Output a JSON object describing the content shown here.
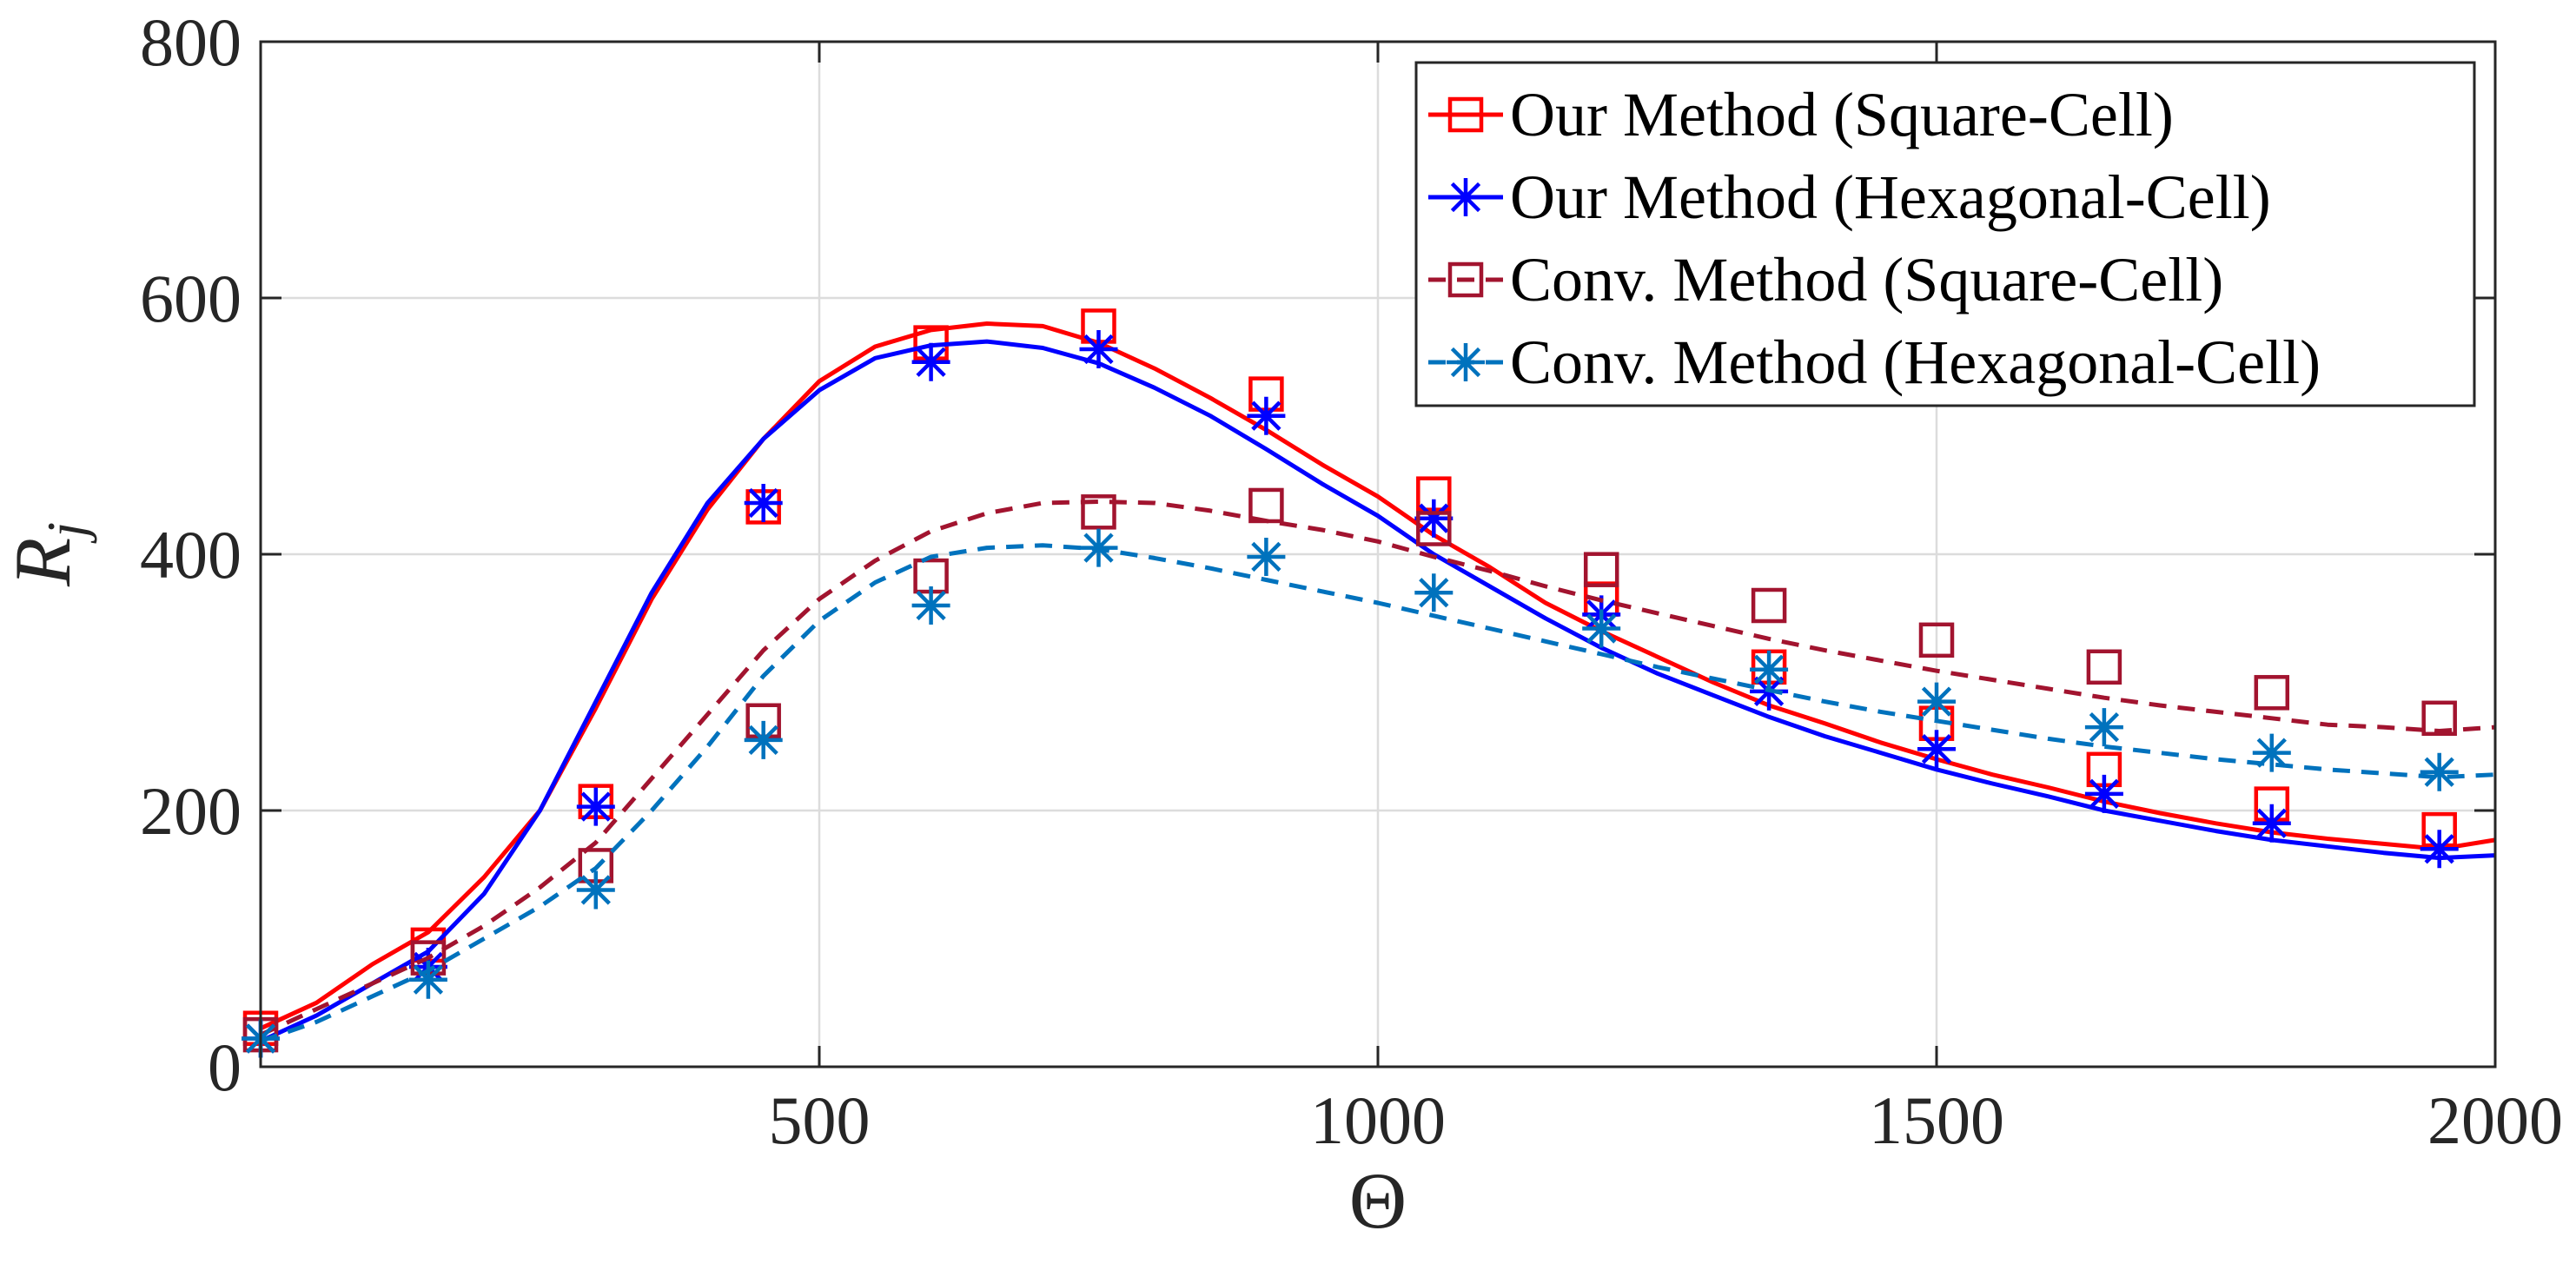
{
  "chart_data": {
    "type": "line",
    "title": "",
    "xlabel": "Θ",
    "ylabel": "R",
    "ylabel_subscript": "j",
    "xlim": [
      0,
      2000
    ],
    "ylim": [
      0,
      800
    ],
    "xticks": [
      500,
      1000,
      1500,
      2000
    ],
    "yticks": [
      0,
      200,
      400,
      600,
      800
    ],
    "grid": true,
    "legend_position": "top-right",
    "series": [
      {
        "name": "Our Method (Square-Cell)",
        "color": "#ff0000",
        "dash": "solid",
        "marker": "square",
        "line": {
          "x": [
            0,
            50,
            100,
            150,
            200,
            250,
            300,
            350,
            400,
            450,
            500,
            550,
            600,
            650,
            700,
            750,
            800,
            850,
            900,
            950,
            1000,
            1050,
            1100,
            1150,
            1200,
            1250,
            1300,
            1350,
            1400,
            1450,
            1500,
            1550,
            1600,
            1650,
            1700,
            1750,
            1800,
            1850,
            1900,
            1950,
            2000
          ],
          "y": [
            30,
            50,
            80,
            105,
            148,
            200,
            280,
            365,
            435,
            490,
            535,
            562,
            575,
            580,
            578,
            565,
            545,
            522,
            497,
            470,
            445,
            415,
            390,
            362,
            340,
            320,
            300,
            282,
            268,
            253,
            240,
            228,
            218,
            207,
            198,
            190,
            183,
            178,
            174,
            170,
            177
          ]
        },
        "markers": {
          "x": [
            0,
            150,
            300,
            450,
            600,
            750,
            900,
            1050,
            1200,
            1350,
            1500,
            1650,
            1800,
            1950
          ],
          "y": [
            30,
            95,
            207,
            437,
            565,
            578,
            525,
            447,
            365,
            312,
            268,
            232,
            205,
            185
          ]
        }
      },
      {
        "name": "Our Method (Hexagonal-Cell)",
        "color": "#0000ff",
        "dash": "solid",
        "marker": "asterisk",
        "line": {
          "x": [
            0,
            50,
            100,
            150,
            200,
            250,
            300,
            350,
            400,
            450,
            500,
            550,
            600,
            650,
            700,
            750,
            800,
            850,
            900,
            950,
            1000,
            1050,
            1100,
            1150,
            1200,
            1250,
            1300,
            1350,
            1400,
            1450,
            1500,
            1550,
            1600,
            1650,
            1700,
            1750,
            1800,
            1850,
            1900,
            1950,
            2000
          ],
          "y": [
            20,
            40,
            65,
            90,
            135,
            200,
            285,
            370,
            440,
            490,
            528,
            553,
            563,
            566,
            561,
            549,
            530,
            508,
            482,
            455,
            430,
            400,
            375,
            350,
            327,
            307,
            290,
            273,
            258,
            245,
            232,
            221,
            211,
            200,
            192,
            184,
            177,
            172,
            167,
            163,
            165
          ]
        },
        "markers": {
          "x": [
            0,
            150,
            300,
            450,
            600,
            750,
            900,
            1050,
            1200,
            1350,
            1500,
            1650,
            1800,
            1950
          ],
          "y": [
            22,
            78,
            203,
            440,
            550,
            560,
            508,
            428,
            353,
            293,
            248,
            213,
            190,
            170
          ]
        }
      },
      {
        "name": "Conv. Method (Square-Cell)",
        "color": "#a2142f",
        "dash": "dashed",
        "marker": "square",
        "line": {
          "x": [
            0,
            50,
            100,
            150,
            200,
            250,
            300,
            350,
            400,
            450,
            500,
            550,
            600,
            650,
            700,
            750,
            800,
            850,
            900,
            950,
            1000,
            1050,
            1100,
            1150,
            1200,
            1250,
            1300,
            1350,
            1400,
            1450,
            1500,
            1550,
            1600,
            1650,
            1700,
            1750,
            1800,
            1850,
            1900,
            1950,
            2000
          ],
          "y": [
            25,
            45,
            65,
            85,
            110,
            140,
            175,
            225,
            275,
            325,
            365,
            395,
            418,
            432,
            440,
            441,
            440,
            434,
            426,
            419,
            410,
            398,
            387,
            375,
            364,
            354,
            344,
            334,
            325,
            317,
            309,
            302,
            295,
            288,
            282,
            277,
            272,
            267,
            265,
            262,
            265
          ]
        },
        "markers": {
          "x": [
            0,
            150,
            300,
            450,
            600,
            750,
            900,
            1050,
            1200,
            1350,
            1500,
            1650,
            1800,
            1950
          ],
          "y": [
            25,
            85,
            157,
            270,
            383,
            433,
            438,
            420,
            388,
            360,
            333,
            312,
            292,
            272
          ]
        }
      },
      {
        "name": "Conv. Method (Hexagonal-Cell)",
        "color": "#0072bd",
        "dash": "dashed",
        "marker": "asterisk",
        "line": {
          "x": [
            0,
            50,
            100,
            150,
            200,
            250,
            300,
            350,
            400,
            450,
            500,
            550,
            600,
            650,
            700,
            750,
            800,
            850,
            900,
            950,
            1000,
            1050,
            1100,
            1150,
            1200,
            1250,
            1300,
            1350,
            1400,
            1450,
            1500,
            1550,
            1600,
            1650,
            1700,
            1750,
            1800,
            1850,
            1900,
            1950,
            2000
          ],
          "y": [
            20,
            35,
            55,
            75,
            100,
            125,
            155,
            200,
            250,
            305,
            348,
            378,
            398,
            405,
            407,
            404,
            397,
            389,
            380,
            371,
            362,
            352,
            342,
            332,
            322,
            312,
            303,
            294,
            285,
            277,
            270,
            263,
            256,
            250,
            245,
            240,
            236,
            232,
            229,
            226,
            228
          ]
        },
        "markers": {
          "x": [
            0,
            150,
            300,
            450,
            600,
            750,
            900,
            1050,
            1200,
            1350,
            1500,
            1650,
            1800,
            1950
          ],
          "y": [
            22,
            68,
            138,
            255,
            360,
            405,
            398,
            370,
            342,
            310,
            285,
            265,
            245,
            230
          ]
        }
      }
    ]
  }
}
